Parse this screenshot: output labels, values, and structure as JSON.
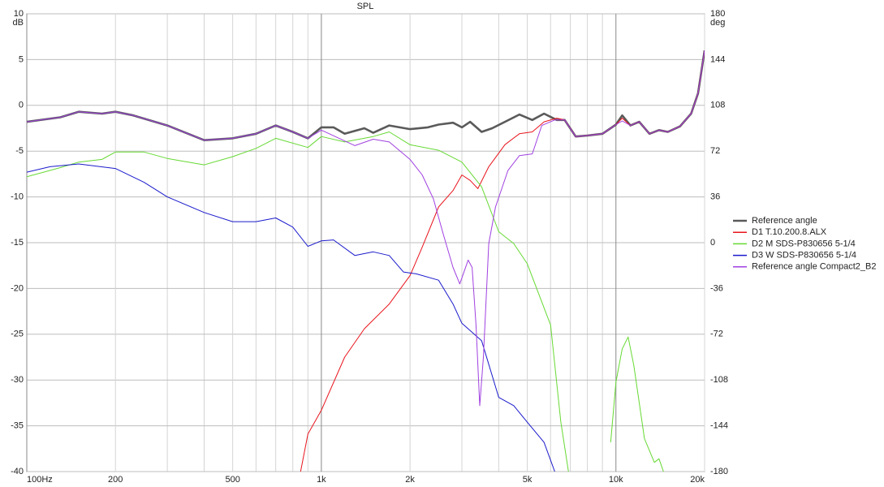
{
  "chart_data": {
    "type": "line",
    "title": "SPL",
    "x_scale": "log",
    "y_label": "dB",
    "y2_label": "deg",
    "xlim": [
      100,
      20000
    ],
    "xticks": [
      {
        "value": 100,
        "label": "100Hz"
      },
      200,
      500,
      {
        "value": 1000,
        "label": "1k"
      },
      {
        "value": 2000,
        "label": "2k"
      },
      {
        "value": 5000,
        "label": "5k"
      },
      {
        "value": 10000,
        "label": "10k"
      },
      {
        "value": 20000,
        "label": "20k"
      }
    ],
    "x_minor_grid": [
      300,
      400,
      600,
      700,
      800,
      900,
      3000,
      4000,
      6000,
      7000,
      8000,
      9000
    ],
    "ylim": [
      -40,
      10
    ],
    "yticks": [
      10,
      5,
      0,
      -5,
      -10,
      -15,
      -20,
      -25,
      -30,
      -35,
      -40
    ],
    "y2lim": [
      -180,
      180
    ],
    "y2ticks": [
      180,
      144,
      108,
      72,
      36,
      0,
      -36,
      -72,
      -108,
      -144,
      -180
    ],
    "grid": true,
    "legend": "right",
    "series": [
      {
        "name": "Reference angle",
        "color": "#5a5a5a",
        "line_width": 2.6,
        "x": [
          100,
          130,
          150,
          180,
          200,
          230,
          300,
          400,
          500,
          600,
          700,
          800,
          900,
          1000,
          1100,
          1200,
          1400,
          1500,
          1700,
          2000,
          2300,
          2500,
          2800,
          3000,
          3200,
          3500,
          3800,
          4200,
          4700,
          5200,
          5700,
          6300,
          6700,
          7300,
          8000,
          9000,
          10000,
          10500,
          11200,
          12000,
          13000,
          14000,
          15000,
          16500,
          18000,
          19000,
          20000
        ],
        "values": [
          -1.8,
          -1.3,
          -0.7,
          -0.9,
          -0.7,
          -1.1,
          -2.2,
          -3.8,
          -3.6,
          -3.1,
          -2.2,
          -2.9,
          -3.6,
          -2.4,
          -2.4,
          -3.1,
          -2.5,
          -3.0,
          -2.2,
          -2.6,
          -2.4,
          -2.1,
          -1.9,
          -2.4,
          -1.8,
          -2.9,
          -2.5,
          -1.8,
          -1.0,
          -1.6,
          -0.9,
          -1.6,
          -1.6,
          -3.4,
          -3.3,
          -3.1,
          -2.1,
          -1.1,
          -2.2,
          -1.8,
          -3.1,
          -2.7,
          -2.9,
          -2.3,
          -0.9,
          1.3,
          6.0
        ]
      },
      {
        "name": "D1 T.10.200.8.ALX",
        "color": "#e8141c",
        "line_width": 1,
        "x": [
          850,
          900,
          1000,
          1200,
          1400,
          1700,
          2000,
          2200,
          2500,
          2800,
          3000,
          3200,
          3400,
          3700,
          4200,
          4700,
          5200,
          5700,
          6300,
          6700,
          7300,
          8000,
          9000,
          10000,
          10500,
          11200,
          12000,
          13000,
          14000,
          15000,
          16500,
          18000,
          19000,
          20000
        ],
        "values": [
          -40,
          -35.9,
          -33.3,
          -27.5,
          -24.4,
          -21.7,
          -18.6,
          -15.5,
          -11.1,
          -9.3,
          -7.6,
          -8.2,
          -9.1,
          -6.7,
          -4.3,
          -3.1,
          -2.9,
          -1.8,
          -1.4,
          -1.6,
          -3.4,
          -3.3,
          -3.1,
          -2.1,
          -1.4,
          -2.2,
          -1.8,
          -3.1,
          -2.7,
          -2.9,
          -2.3,
          -0.9,
          1.3,
          6.0
        ]
      },
      {
        "name": "D2 M SDS-P830656 5-1/4",
        "color": "#66d933",
        "line_width": 1,
        "x": [
          100,
          130,
          150,
          180,
          200,
          250,
          300,
          400,
          500,
          600,
          700,
          900,
          1000,
          1200,
          1500,
          1700,
          2000,
          2500,
          3000,
          3500,
          4000,
          4500,
          5000,
          6000,
          6500,
          6900,
          9000,
          9600,
          10000,
          10500,
          11000,
          11500,
          12500,
          13500,
          14000,
          14500
        ],
        "values": [
          -7.8,
          -6.8,
          -6.2,
          -5.9,
          -5.1,
          -5.1,
          -5.8,
          -6.5,
          -5.6,
          -4.7,
          -3.6,
          -4.6,
          -3.4,
          -4.0,
          -3.4,
          -2.9,
          -4.3,
          -4.9,
          -6.2,
          -8.9,
          -13.8,
          -15.1,
          -17.3,
          -24,
          -34.6,
          -40,
          null,
          -36.8,
          -30.2,
          -26.6,
          -25.3,
          -28.4,
          -36.4,
          -39,
          -38.6,
          -40
        ]
      },
      {
        "name": "D3 W SDS-P830656 5-1/4",
        "color": "#1a1acc",
        "line_width": 1,
        "x": [
          100,
          120,
          150,
          200,
          250,
          300,
          400,
          500,
          600,
          700,
          800,
          900,
          1000,
          1100,
          1300,
          1500,
          1700,
          1900,
          2100,
          2500,
          2800,
          3000,
          3500,
          4000,
          4500,
          5000,
          5700,
          6200
        ],
        "values": [
          -7.3,
          -6.7,
          -6.4,
          -6.9,
          -8.4,
          -10.0,
          -11.7,
          -12.7,
          -12.7,
          -12.3,
          -13.3,
          -15.4,
          -14.8,
          -14.7,
          -16.4,
          -16.0,
          -16.4,
          -18.2,
          -18.4,
          -19.1,
          -21.7,
          -23.8,
          -25.7,
          -31.9,
          -32.8,
          -34.6,
          -36.8,
          -40
        ]
      },
      {
        "name": "Reference angle Compact2_B2",
        "color": "#a040e0",
        "line_width": 1,
        "x": [
          100,
          130,
          150,
          180,
          200,
          230,
          300,
          400,
          500,
          600,
          700,
          800,
          900,
          1000,
          1300,
          1500,
          1700,
          2000,
          2200,
          2400,
          2600,
          2800,
          2950,
          3150,
          3250,
          3350,
          3450,
          3550,
          3700,
          3900,
          4300,
          4700,
          5200,
          5600,
          6200,
          6700,
          7300,
          8000,
          9000,
          10000,
          10500,
          11200,
          12000,
          13000,
          14000,
          15000,
          16500,
          18000,
          19000,
          20000
        ],
        "values": [
          -1.8,
          -1.3,
          -0.7,
          -0.9,
          -0.7,
          -1.1,
          -2.2,
          -3.8,
          -3.6,
          -3.1,
          -2.2,
          -2.9,
          -3.6,
          -2.7,
          -4.4,
          -3.7,
          -4.0,
          -5.9,
          -7.6,
          -10.2,
          -14.2,
          -17.7,
          -19.5,
          -16.9,
          -17.7,
          -24,
          -32.8,
          -27.5,
          -15.1,
          -11.1,
          -7.1,
          -5.5,
          -5.3,
          -2.2,
          -1.6,
          -1.6,
          -3.4,
          -3.3,
          -3.1,
          -2.1,
          -1.7,
          -2.2,
          -1.8,
          -3.1,
          -2.7,
          -2.9,
          -2.3,
          -0.9,
          1.3,
          6.0
        ]
      }
    ]
  }
}
